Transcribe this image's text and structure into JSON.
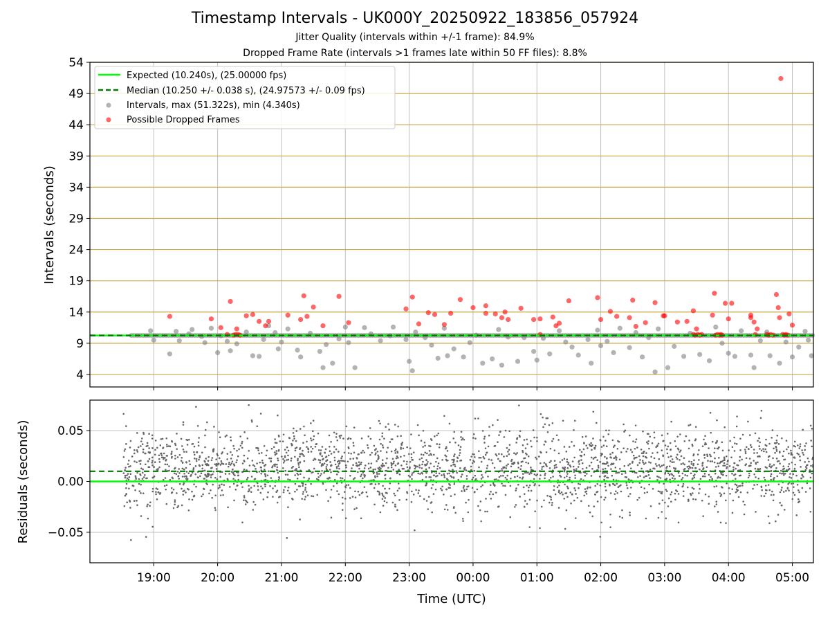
{
  "header": {
    "title": "Timestamp Intervals - UK000Y_20250922_183856_057924",
    "subtitle1": "Jitter Quality (intervals within +/-1 frame): 84.9%",
    "subtitle2": "Dropped Frame Rate (intervals >1 frames late within 50 FF files): 8.8%"
  },
  "colors": {
    "expected": "#00ff00",
    "median": "#007a00",
    "intervals": "#808080",
    "dropped": "#ff0000",
    "hgrid": "#c8a848",
    "vgrid": "#bfbfbf",
    "residuals": "#666666"
  },
  "legend": {
    "expected": "Expected (10.240s), (25.00000 fps)",
    "median": "Median (10.250 +/- 0.038 s), (24.97573 +/- 0.09 fps)",
    "intervals": "Intervals, max (51.322s), min (4.340s)",
    "dropped": "Possible Dropped Frames"
  },
  "chart_data": [
    {
      "type": "scatter",
      "title": "Timestamp Intervals - UK000Y_20250922_183856_057924",
      "ylabel": "Intervals (seconds)",
      "xlabel": "",
      "x_units": "hours since 18:00 UTC (times after midnight continue past 24)",
      "xlim": [
        18.0,
        29.33
      ],
      "ylim": [
        2.0,
        54.0
      ],
      "yticks": [
        4,
        9,
        14,
        19,
        24,
        29,
        34,
        39,
        44,
        49,
        54
      ],
      "ytick_labels": [
        "4",
        "9",
        "14",
        "19",
        "24",
        "29",
        "34",
        "39",
        "44",
        "49",
        "54"
      ],
      "xticks": [
        19,
        20,
        21,
        22,
        23,
        24,
        25,
        26,
        27,
        28,
        29
      ],
      "grid": true,
      "legend_position": "top-left",
      "reference_lines": {
        "expected": 10.24,
        "median": 10.25
      },
      "series": [
        {
          "name": "Intervals, max (51.322s), min (4.340s)",
          "approximate": true,
          "note": "Bulk of ~2400 points lie on the median line (10.25 s) from 18.65 to 29.33 h; listed points are visible outliers",
          "points": [
            [
              18.95,
              11.0
            ],
            [
              19.0,
              9.5
            ],
            [
              19.25,
              7.3
            ],
            [
              19.35,
              10.9
            ],
            [
              19.4,
              9.4
            ],
            [
              19.55,
              10.5
            ],
            [
              19.6,
              11.2
            ],
            [
              19.75,
              10.1
            ],
            [
              19.8,
              9.1
            ],
            [
              19.9,
              11.4
            ],
            [
              20.0,
              7.5
            ],
            [
              20.05,
              10.2
            ],
            [
              20.15,
              9.3
            ],
            [
              20.2,
              7.8
            ],
            [
              20.3,
              8.9
            ],
            [
              20.45,
              10.8
            ],
            [
              20.55,
              7.0
            ],
            [
              20.65,
              6.9
            ],
            [
              20.72,
              9.6
            ],
            [
              20.8,
              11.8
            ],
            [
              20.9,
              10.7
            ],
            [
              20.95,
              8.1
            ],
            [
              21.0,
              9.2
            ],
            [
              21.1,
              11.3
            ],
            [
              21.25,
              7.9
            ],
            [
              21.3,
              6.8
            ],
            [
              21.45,
              10.6
            ],
            [
              21.6,
              7.7
            ],
            [
              21.65,
              5.1
            ],
            [
              21.7,
              8.8
            ],
            [
              21.8,
              5.8
            ],
            [
              21.9,
              9.7
            ],
            [
              22.0,
              11.6
            ],
            [
              22.05,
              9.1
            ],
            [
              22.15,
              5.1
            ],
            [
              22.3,
              11.5
            ],
            [
              22.4,
              10.5
            ],
            [
              22.55,
              9.4
            ],
            [
              22.7,
              10.2
            ],
            [
              22.75,
              11.6
            ],
            [
              22.95,
              9.6
            ],
            [
              23.0,
              6.1
            ],
            [
              23.05,
              4.6
            ],
            [
              23.1,
              10.8
            ],
            [
              23.25,
              9.9
            ],
            [
              23.35,
              8.7
            ],
            [
              23.45,
              6.6
            ],
            [
              23.55,
              11.4
            ],
            [
              23.6,
              7.0
            ],
            [
              23.7,
              8.1
            ],
            [
              23.85,
              6.8
            ],
            [
              23.95,
              9.1
            ],
            [
              24.05,
              10.3
            ],
            [
              24.15,
              5.8
            ],
            [
              24.3,
              6.5
            ],
            [
              24.4,
              11.2
            ],
            [
              24.45,
              5.5
            ],
            [
              24.55,
              10.0
            ],
            [
              24.7,
              6.1
            ],
            [
              24.8,
              9.9
            ],
            [
              24.95,
              7.7
            ],
            [
              25.0,
              6.3
            ],
            [
              25.1,
              9.8
            ],
            [
              25.2,
              7.3
            ],
            [
              25.35,
              11.0
            ],
            [
              25.45,
              9.2
            ],
            [
              25.55,
              8.4
            ],
            [
              25.65,
              7.1
            ],
            [
              25.8,
              9.6
            ],
            [
              25.85,
              5.8
            ],
            [
              25.95,
              11.1
            ],
            [
              26.0,
              8.6
            ],
            [
              26.1,
              9.3
            ],
            [
              26.2,
              7.5
            ],
            [
              26.3,
              11.4
            ],
            [
              26.45,
              8.3
            ],
            [
              26.55,
              10.7
            ],
            [
              26.65,
              6.8
            ],
            [
              26.75,
              9.9
            ],
            [
              26.85,
              4.4
            ],
            [
              26.9,
              11.3
            ],
            [
              27.05,
              5.1
            ],
            [
              27.15,
              8.5
            ],
            [
              27.3,
              6.9
            ],
            [
              27.4,
              10.6
            ],
            [
              27.55,
              7.2
            ],
            [
              27.7,
              6.2
            ],
            [
              27.8,
              11.6
            ],
            [
              27.9,
              9.0
            ],
            [
              28.0,
              7.4
            ],
            [
              28.1,
              6.9
            ],
            [
              28.2,
              11.0
            ],
            [
              28.35,
              7.1
            ],
            [
              28.4,
              5.1
            ],
            [
              28.5,
              9.4
            ],
            [
              28.6,
              10.8
            ],
            [
              28.65,
              7.0
            ],
            [
              28.8,
              5.8
            ],
            [
              28.9,
              9.2
            ],
            [
              29.0,
              6.8
            ],
            [
              29.1,
              8.4
            ],
            [
              29.2,
              10.9
            ],
            [
              29.25,
              9.5
            ],
            [
              29.3,
              7.0
            ]
          ]
        },
        {
          "name": "Possible Dropped Frames",
          "approximate": true,
          "points": [
            [
              19.25,
              13.3
            ],
            [
              19.9,
              12.9
            ],
            [
              20.05,
              11.5
            ],
            [
              20.15,
              10.4
            ],
            [
              20.2,
              15.7
            ],
            [
              20.25,
              10.3
            ],
            [
              20.28,
              10.4
            ],
            [
              20.3,
              11.3
            ],
            [
              20.32,
              10.4
            ],
            [
              20.35,
              10.3
            ],
            [
              20.45,
              13.4
            ],
            [
              20.55,
              13.6
            ],
            [
              20.65,
              12.5
            ],
            [
              20.75,
              11.8
            ],
            [
              20.8,
              12.5
            ],
            [
              21.1,
              13.5
            ],
            [
              21.3,
              12.8
            ],
            [
              21.35,
              16.6
            ],
            [
              21.4,
              13.3
            ],
            [
              21.5,
              14.8
            ],
            [
              21.65,
              11.8
            ],
            [
              21.9,
              16.5
            ],
            [
              22.05,
              12.3
            ],
            [
              22.95,
              14.5
            ],
            [
              23.05,
              16.4
            ],
            [
              23.15,
              12.1
            ],
            [
              23.3,
              13.9
            ],
            [
              23.4,
              13.6
            ],
            [
              23.55,
              12.0
            ],
            [
              23.65,
              13.8
            ],
            [
              23.8,
              16.0
            ],
            [
              24.0,
              14.7
            ],
            [
              24.2,
              15.0
            ],
            [
              24.2,
              13.8
            ],
            [
              24.35,
              13.7
            ],
            [
              24.45,
              13.1
            ],
            [
              24.5,
              14.0
            ],
            [
              24.55,
              12.8
            ],
            [
              24.75,
              14.6
            ],
            [
              24.95,
              12.8
            ],
            [
              25.05,
              12.9
            ],
            [
              25.05,
              10.4
            ],
            [
              25.25,
              13.2
            ],
            [
              25.3,
              11.8
            ],
            [
              25.35,
              12.2
            ],
            [
              25.5,
              15.8
            ],
            [
              25.95,
              16.3
            ],
            [
              26.0,
              12.8
            ],
            [
              26.15,
              14.1
            ],
            [
              26.25,
              13.3
            ],
            [
              26.45,
              13.1
            ],
            [
              26.5,
              15.9
            ],
            [
              26.55,
              11.7
            ],
            [
              26.7,
              12.3
            ],
            [
              26.85,
              15.5
            ],
            [
              26.98,
              13.4
            ],
            [
              27.0,
              13.4
            ],
            [
              27.2,
              12.4
            ],
            [
              27.35,
              12.5
            ],
            [
              27.45,
              14.2
            ],
            [
              27.45,
              10.4
            ],
            [
              27.48,
              10.3
            ],
            [
              27.5,
              11.3
            ],
            [
              27.52,
              10.4
            ],
            [
              27.55,
              10.3
            ],
            [
              27.58,
              10.4
            ],
            [
              27.75,
              13.5
            ],
            [
              27.8,
              10.3
            ],
            [
              27.83,
              10.4
            ],
            [
              27.86,
              10.3
            ],
            [
              27.88,
              10.4
            ],
            [
              27.9,
              10.3
            ],
            [
              27.95,
              15.4
            ],
            [
              28.0,
              12.9
            ],
            [
              28.05,
              15.4
            ],
            [
              28.35,
              13.5
            ],
            [
              28.4,
              12.4
            ],
            [
              28.45,
              11.3
            ],
            [
              28.6,
              10.4
            ],
            [
              28.63,
              10.3
            ],
            [
              28.66,
              10.4
            ],
            [
              28.7,
              10.3
            ],
            [
              28.75,
              16.8
            ],
            [
              28.78,
              14.7
            ],
            [
              28.8,
              13.1
            ],
            [
              28.85,
              10.4
            ],
            [
              28.88,
              10.3
            ],
            [
              28.9,
              10.4
            ],
            [
              28.93,
              10.3
            ],
            [
              28.95,
              13.7
            ],
            [
              29.0,
              11.9
            ],
            [
              28.35,
              13.1
            ],
            [
              28.42,
              10.4
            ],
            [
              27.78,
              17.0
            ],
            [
              28.82,
              51.4
            ]
          ]
        }
      ]
    },
    {
      "type": "scatter",
      "title": "",
      "ylabel": "Residuals (seconds)",
      "xlabel": "Time (UTC)",
      "x_units": "hours since 18:00 UTC (times after midnight continue past 24)",
      "xlim": [
        18.0,
        29.33
      ],
      "ylim": [
        -0.08,
        0.08
      ],
      "yticks": [
        0.05,
        0.0,
        -0.05
      ],
      "ytick_labels": [
        "0.05",
        "0.00",
        "−0.05"
      ],
      "xticks": [
        19,
        20,
        21,
        22,
        23,
        24,
        25,
        26,
        27,
        28,
        29
      ],
      "xtick_labels": [
        "19:00",
        "20:00",
        "21:00",
        "22:00",
        "23:00",
        "00:00",
        "01:00",
        "02:00",
        "03:00",
        "04:00",
        "05:00"
      ],
      "grid": true,
      "reference_lines": {
        "expected": 0.0,
        "median": 0.01
      },
      "series": [
        {
          "name": "Residuals",
          "approximate": true,
          "distribution": {
            "count": 2600,
            "x_start": 18.52,
            "x_end": 29.33,
            "center": 0.012,
            "std": 0.02,
            "clip_min": -0.078,
            "clip_max": 0.078,
            "seed": 12345
          }
        }
      ]
    }
  ]
}
